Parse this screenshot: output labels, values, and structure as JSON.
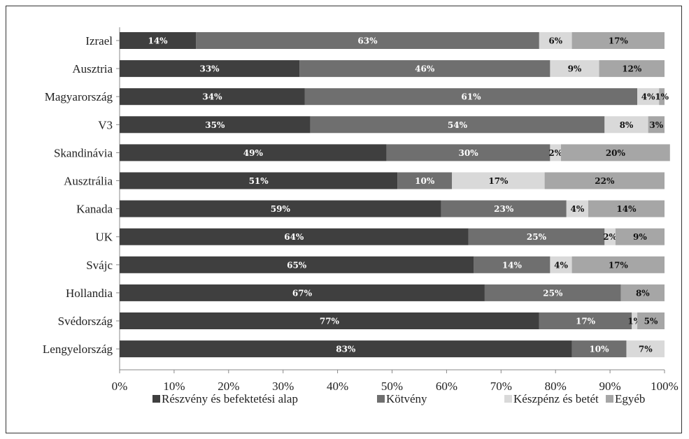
{
  "chart_data": {
    "type": "bar",
    "orientation": "horizontal",
    "stacked": true,
    "percent_stacked": true,
    "categories": [
      "Izrael",
      "Ausztria",
      "Magyarország",
      "V3",
      "Skandinávia",
      "Ausztrália",
      "Kanada",
      "UK",
      "Svájc",
      "Hollandia",
      "Svédország",
      "Lengyelország"
    ],
    "series": [
      {
        "name": "Részvény és befektetési alap",
        "color": "#3f3f3f",
        "values": [
          14,
          33,
          34,
          35,
          49,
          51,
          59,
          64,
          65,
          67,
          77,
          83
        ]
      },
      {
        "name": "Kötvény",
        "color": "#6f6f6f",
        "values": [
          63,
          46,
          61,
          54,
          30,
          10,
          23,
          25,
          14,
          25,
          17,
          10
        ]
      },
      {
        "name": "Készpénz és betét",
        "color": "#d9d9d9",
        "values": [
          6,
          9,
          4,
          8,
          2,
          17,
          4,
          2,
          4,
          0,
          1,
          7
        ]
      },
      {
        "name": "Egyéb",
        "color": "#a6a6a6",
        "values": [
          17,
          12,
          1,
          3,
          20,
          22,
          14,
          9,
          17,
          8,
          5,
          0
        ]
      }
    ],
    "xticks": [
      "0%",
      "10%",
      "20%",
      "30%",
      "40%",
      "50%",
      "60%",
      "70%",
      "80%",
      "90%",
      "100%"
    ],
    "xlim": [
      0,
      100
    ],
    "value_suffix": "%",
    "grid": false,
    "legend_position": "bottom",
    "title": "",
    "xlabel": "",
    "ylabel": ""
  }
}
